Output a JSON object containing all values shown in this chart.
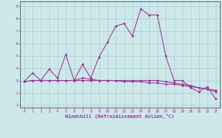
{
  "xlabel": "Windchill (Refroidissement éolien,°C)",
  "background_color": "#cce8e8",
  "grid_color": "#aacccc",
  "line_color": "#993399",
  "spine_color": "#663366",
  "xlim": [
    -0.5,
    23.5
  ],
  "ylim": [
    0.8,
    9.4
  ],
  "xticks": [
    0,
    1,
    2,
    3,
    4,
    5,
    6,
    7,
    8,
    9,
    10,
    11,
    12,
    13,
    14,
    15,
    16,
    17,
    18,
    19,
    20,
    21,
    22,
    23
  ],
  "yticks": [
    1,
    2,
    3,
    4,
    5,
    6,
    7,
    8,
    9
  ],
  "series1_x": [
    0,
    1,
    2,
    3,
    4,
    5,
    6,
    7,
    8,
    9,
    10,
    11,
    12,
    13,
    14,
    15,
    16,
    17,
    18,
    19,
    20,
    21,
    22,
    23
  ],
  "series1_y": [
    2.9,
    3.6,
    3.0,
    3.9,
    3.2,
    5.1,
    3.0,
    4.3,
    3.2,
    4.9,
    6.1,
    7.4,
    7.6,
    6.6,
    8.8,
    8.3,
    8.3,
    5.0,
    3.0,
    3.0,
    2.4,
    2.1,
    2.5,
    1.5
  ],
  "series2_x": [
    0,
    1,
    2,
    3,
    4,
    5,
    6,
    7,
    8,
    9,
    10,
    11,
    12,
    13,
    14,
    15,
    16,
    17,
    18,
    19,
    20,
    21,
    22,
    23
  ],
  "series2_y": [
    2.9,
    3.0,
    3.0,
    3.0,
    3.0,
    3.0,
    3.0,
    3.2,
    3.1,
    3.0,
    3.0,
    3.0,
    2.9,
    2.9,
    2.9,
    2.8,
    2.8,
    2.7,
    2.7,
    2.6,
    2.5,
    2.4,
    2.3,
    2.2
  ],
  "series3_x": [
    0,
    1,
    2,
    3,
    4,
    5,
    6,
    7,
    8,
    9,
    10,
    11,
    12,
    13,
    14,
    15,
    16,
    17,
    18,
    19,
    20,
    21,
    22,
    23
  ],
  "series3_y": [
    2.9,
    3.0,
    3.0,
    3.0,
    3.0,
    3.0,
    3.0,
    3.0,
    3.0,
    3.0,
    3.0,
    3.0,
    3.0,
    3.0,
    3.0,
    3.0,
    3.0,
    2.9,
    2.8,
    2.7,
    2.6,
    2.4,
    2.3,
    2.1
  ]
}
